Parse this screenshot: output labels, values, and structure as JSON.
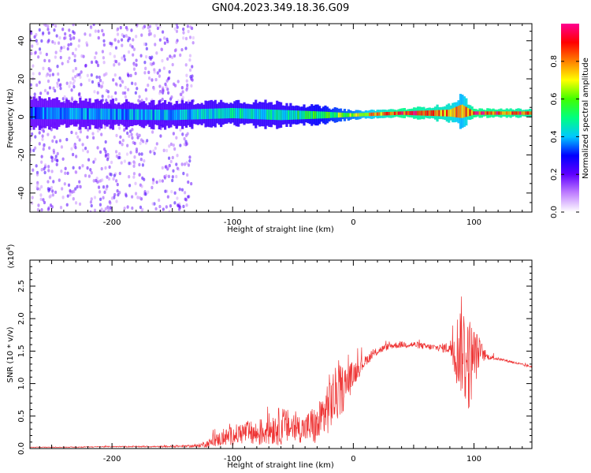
{
  "title": "GN04.2023.349.18.36.G09",
  "chart_data": [
    {
      "type": "heatmap",
      "xlabel": "Height of straight line (km)",
      "ylabel": "Frequency (Hz)",
      "xlim": [
        -268,
        148
      ],
      "ylim": [
        -50,
        49
      ],
      "xticks": [
        -200,
        -100,
        0,
        100
      ],
      "xtick_labels": [
        "-200",
        "-100",
        "0",
        "100"
      ],
      "yticks": [
        -40,
        -20,
        0,
        20,
        40
      ],
      "ytick_labels": [
        "-40",
        "-20",
        "0",
        "20",
        "40"
      ],
      "colorbar": {
        "label": "Normalized spectral amplitude",
        "range": [
          0,
          1
        ],
        "ticks": [
          0.0,
          0.2,
          0.4,
          0.6,
          0.8
        ],
        "tick_labels": [
          "0.0",
          "0.2",
          "0.4",
          "0.6",
          "0.8"
        ],
        "colors": [
          "#ffffff",
          "#c080ff",
          "#6000ff",
          "#0000ff",
          "#00c8ff",
          "#00ff80",
          "#40ff00",
          "#ffff00",
          "#ff8000",
          "#ff0000",
          "#ff0090"
        ]
      },
      "band": [
        {
          "x": -268,
          "center": 2,
          "halfwidth": 7,
          "amplitude": 0.35
        },
        {
          "x": -150,
          "center": 1,
          "halfwidth": 6,
          "amplitude": 0.4
        },
        {
          "x": -100,
          "center": 2,
          "halfwidth": 6,
          "amplitude": 0.45
        },
        {
          "x": -60,
          "center": 1,
          "halfwidth": 6,
          "amplitude": 0.45
        },
        {
          "x": -25,
          "center": 1,
          "halfwidth": 4,
          "amplitude": 0.55
        },
        {
          "x": 0,
          "center": 1,
          "halfwidth": 2,
          "amplitude": 0.65
        },
        {
          "x": 40,
          "center": 2,
          "halfwidth": 2,
          "amplitude": 0.9
        },
        {
          "x": 80,
          "center": 2,
          "halfwidth": 4,
          "amplitude": 0.8
        },
        {
          "x": 90,
          "center": 3,
          "halfwidth": 8,
          "amplitude": 0.7
        },
        {
          "x": 100,
          "center": 2,
          "halfwidth": 2,
          "amplitude": 0.9
        },
        {
          "x": 148,
          "center": 2,
          "halfwidth": 2,
          "amplitude": 0.85
        }
      ],
      "scatter_region": {
        "x": [
          -268,
          -130
        ],
        "y": [
          -50,
          49
        ],
        "amplitude": 0.2
      }
    },
    {
      "type": "line",
      "xlabel": "Height of straight line (km)",
      "ylabel": "SNR (10 * v/v)",
      "yscale_label": "(x10",
      "yscale_exp": "4",
      "xlim": [
        -268,
        148
      ],
      "ylim": [
        0,
        2.9
      ],
      "xticks": [
        -200,
        -100,
        0,
        100
      ],
      "xtick_labels": [
        "-200",
        "-100",
        "0",
        "100"
      ],
      "yticks": [
        0.0,
        0.5,
        1.0,
        1.5,
        2.0,
        2.5
      ],
      "ytick_labels": [
        "0.0",
        "0.5",
        "1.0",
        "1.5",
        "2.0",
        "2.5"
      ],
      "color": "#ee3333",
      "series": [
        {
          "x": [
            -268,
            -240,
            -200,
            -160,
            -130,
            -120,
            -110,
            -100,
            -90,
            -80,
            -70,
            -60,
            -50,
            -40,
            -35,
            -30,
            -25,
            -20,
            -15,
            -10,
            -5,
            0,
            10,
            20,
            30,
            40,
            50,
            60,
            70,
            80,
            85,
            90,
            95,
            100,
            105,
            110,
            120,
            130,
            140,
            148
          ],
          "y": [
            0.02,
            0.02,
            0.03,
            0.03,
            0.04,
            0.08,
            0.15,
            0.2,
            0.25,
            0.22,
            0.3,
            0.35,
            0.32,
            0.3,
            0.35,
            0.33,
            0.5,
            0.7,
            0.8,
            0.9,
            1.0,
            1.15,
            1.35,
            1.5,
            1.58,
            1.6,
            1.6,
            1.57,
            1.55,
            1.55,
            1.5,
            1.6,
            1.3,
            1.4,
            1.5,
            1.42,
            1.38,
            1.34,
            1.29,
            1.26
          ],
          "noise": [
            0.005,
            0.005,
            0.008,
            0.01,
            0.02,
            0.06,
            0.12,
            0.15,
            0.18,
            0.2,
            0.25,
            0.3,
            0.25,
            0.2,
            0.3,
            0.3,
            0.4,
            0.45,
            0.45,
            0.4,
            0.3,
            0.2,
            0.08,
            0.06,
            0.05,
            0.05,
            0.05,
            0.05,
            0.05,
            0.1,
            0.5,
            0.8,
            0.8,
            0.5,
            0.2,
            0.05,
            0.02,
            0.02,
            0.02,
            0.02
          ]
        }
      ]
    }
  ]
}
